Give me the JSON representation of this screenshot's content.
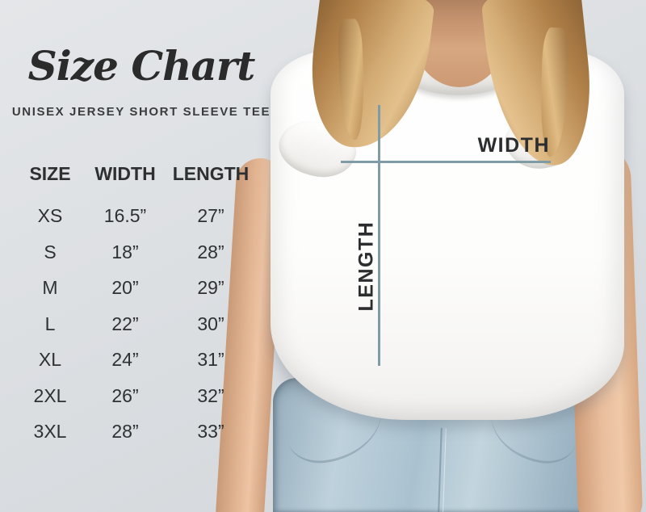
{
  "header": {
    "title": "Size Chart",
    "subtitle": "UNISEX JERSEY SHORT SLEEVE TEE"
  },
  "size_table": {
    "columns": [
      "SIZE",
      "WIDTH",
      "LENGTH"
    ],
    "rows": [
      {
        "size": "XS",
        "width": "16.5”",
        "length": "27”"
      },
      {
        "size": "S",
        "width": "18”",
        "length": "28”"
      },
      {
        "size": "M",
        "width": "20”",
        "length": "29”"
      },
      {
        "size": "L",
        "width": "22”",
        "length": "30”"
      },
      {
        "size": "XL",
        "width": "24”",
        "length": "31”"
      },
      {
        "size": "2XL",
        "width": "26”",
        "length": "32”"
      },
      {
        "size": "3XL",
        "width": "28”",
        "length": "33”"
      }
    ]
  },
  "overlay": {
    "width_label": "WIDTH",
    "length_label": "LENGTH",
    "line_color": "#7f9ba6"
  },
  "colors": {
    "background": "#dcdfe2",
    "text": "#2d2f30",
    "measure_line": "#7f9ba6",
    "shirt": "#fdfdfc",
    "denim": "#aac2d0",
    "hair": "#c9a066",
    "skin": "#dfb38f"
  },
  "chart_data": {
    "type": "table",
    "title": "Size Chart",
    "subtitle": "UNISEX JERSEY SHORT SLEEVE TEE",
    "columns": [
      "SIZE",
      "WIDTH",
      "LENGTH"
    ],
    "categories": [
      "XS",
      "S",
      "M",
      "L",
      "XL",
      "2XL",
      "3XL"
    ],
    "series": [
      {
        "name": "WIDTH",
        "unit": "inches",
        "values": [
          16.5,
          18,
          20,
          22,
          24,
          26,
          28
        ]
      },
      {
        "name": "LENGTH",
        "unit": "inches",
        "values": [
          27,
          28,
          29,
          30,
          31,
          32,
          33
        ]
      }
    ]
  }
}
